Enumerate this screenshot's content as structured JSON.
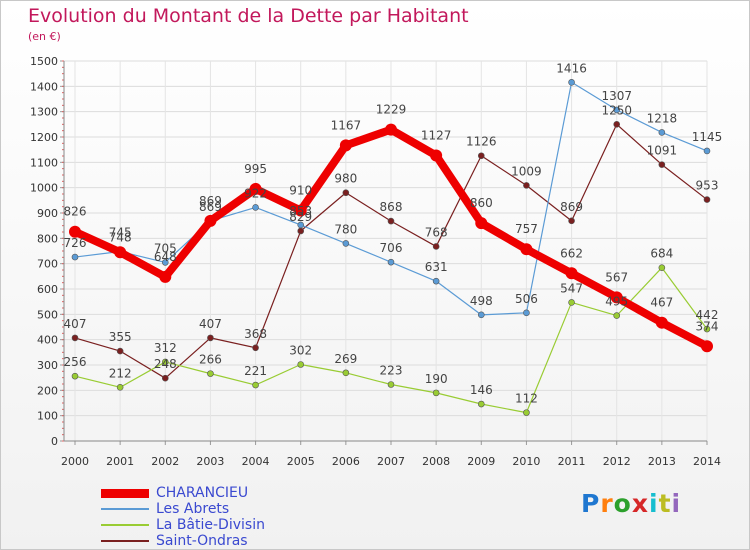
{
  "chart_data": {
    "type": "line",
    "title": "Evolution du Montant de la Dette par Habitant",
    "subtitle": "(en €)",
    "xlabel": "",
    "ylabel": "",
    "x": [
      "2000",
      "2001",
      "2002",
      "2003",
      "2004",
      "2005",
      "2006",
      "2007",
      "2008",
      "2009",
      "2010",
      "2011",
      "2012",
      "2013",
      "2014"
    ],
    "ylim": [
      0,
      1500
    ],
    "yticks": [
      "0",
      "100",
      "200",
      "300",
      "400",
      "500",
      "600",
      "700",
      "800",
      "900",
      "1000",
      "1100",
      "1200",
      "1300",
      "1400",
      "1500"
    ],
    "grid": true,
    "legend_position": "bottom-left",
    "series": [
      {
        "name": "CHARANCIEU",
        "color": "#ee0000",
        "values": [
          826,
          745,
          648,
          869,
          995,
          910,
          1167,
          1229,
          1127,
          860,
          757,
          662,
          567,
          467,
          374
        ]
      },
      {
        "name": "Les Abrets",
        "color": "#5b9bd5",
        "values": [
          726,
          748,
          705,
          869,
          922,
          853,
          780,
          706,
          631,
          498,
          506,
          1416,
          1307,
          1218,
          1145
        ]
      },
      {
        "name": "La Bâtie-Divisin",
        "color": "#99cc33",
        "values": [
          256,
          212,
          312,
          266,
          221,
          302,
          269,
          223,
          190,
          146,
          112,
          547,
          495,
          684,
          442
        ]
      },
      {
        "name": "Saint-Ondras",
        "color": "#7a2020",
        "values": [
          407,
          355,
          248,
          407,
          368,
          829,
          980,
          868,
          768,
          1126,
          1009,
          869,
          1250,
          1091,
          953
        ]
      }
    ],
    "data_labels": [
      [
        "826",
        "745",
        "648",
        "869",
        "995",
        "910",
        "1167",
        "1229",
        "1127",
        "860",
        "757",
        "662",
        "567",
        "467",
        "374"
      ],
      [
        "726",
        "748",
        "705",
        "869",
        "922",
        "853",
        "780",
        "706",
        "631",
        "498",
        "506",
        "1416",
        "1307",
        "1218",
        "1145"
      ],
      [
        "256",
        "212",
        "312",
        "266",
        "221",
        "302",
        "269",
        "223",
        "190",
        "146",
        "112",
        "547",
        "495",
        "684",
        "442"
      ],
      [
        "407",
        "355",
        "248",
        "407",
        "368",
        "829",
        "980",
        "868",
        "768",
        "1126",
        "1009",
        "869",
        "1250",
        "1091",
        "953"
      ]
    ]
  },
  "branding": {
    "logo_text": "Proxiti",
    "letter_colors": [
      "#1f77d0",
      "#ff7f0e",
      "#2ca02c",
      "#d62728",
      "#17becf",
      "#bcbd22",
      "#9467bd"
    ]
  }
}
